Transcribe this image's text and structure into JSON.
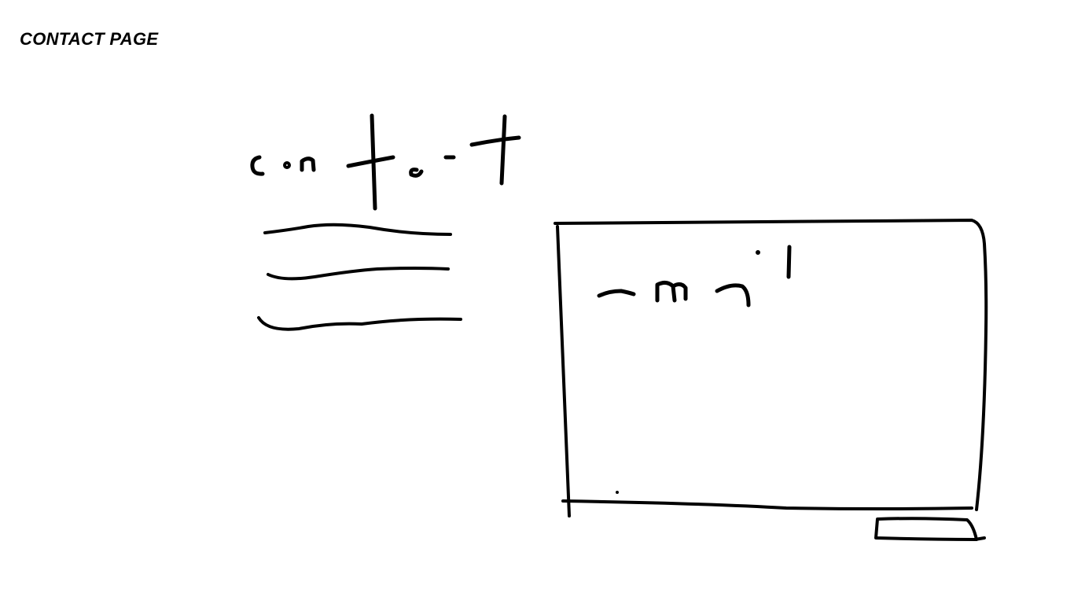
{
  "page": {
    "title": "CONTACT PAGE"
  },
  "contact_section": {
    "heading": "contact",
    "text_lines": 3
  },
  "contact_form": {
    "field_label": "email"
  },
  "colors": {
    "background": "#ffffff",
    "ink": "#000000"
  }
}
